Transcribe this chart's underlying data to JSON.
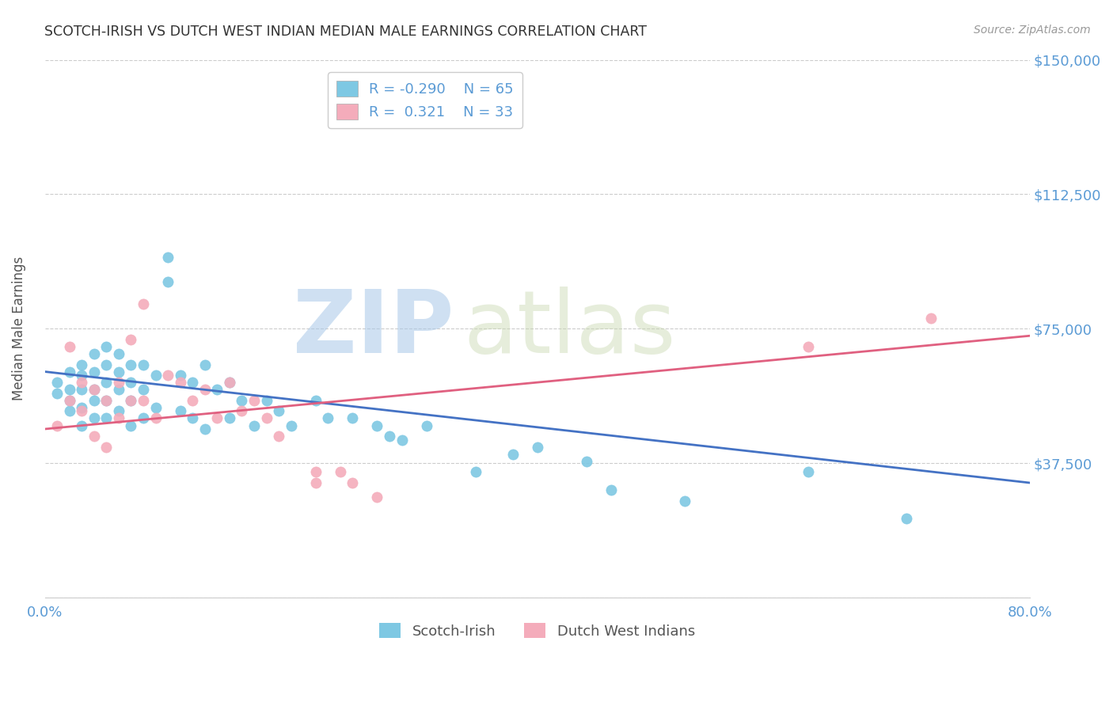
{
  "title": "SCOTCH-IRISH VS DUTCH WEST INDIAN MEDIAN MALE EARNINGS CORRELATION CHART",
  "source_text": "Source: ZipAtlas.com",
  "ylabel": "Median Male Earnings",
  "watermark_zip": "ZIP",
  "watermark_atlas": "atlas",
  "xmin": 0.0,
  "xmax": 0.8,
  "ymin": 0,
  "ymax": 150000,
  "yticks": [
    0,
    37500,
    75000,
    112500,
    150000
  ],
  "ytick_labels": [
    "",
    "$37,500",
    "$75,000",
    "$112,500",
    "$150,000"
  ],
  "xticks": [
    0.0,
    0.2,
    0.4,
    0.6,
    0.8
  ],
  "xtick_labels": [
    "0.0%",
    "",
    "",
    "",
    "80.0%"
  ],
  "blue_color": "#7EC8E3",
  "pink_color": "#F4ACBB",
  "blue_line_color": "#4472C4",
  "pink_line_color": "#E06080",
  "legend_label_blue": "Scotch-Irish",
  "legend_label_pink": "Dutch West Indians",
  "blue_R": -0.29,
  "blue_N": 65,
  "pink_R": 0.321,
  "pink_N": 33,
  "blue_scatter_x": [
    0.01,
    0.01,
    0.02,
    0.02,
    0.02,
    0.02,
    0.03,
    0.03,
    0.03,
    0.03,
    0.03,
    0.04,
    0.04,
    0.04,
    0.04,
    0.04,
    0.05,
    0.05,
    0.05,
    0.05,
    0.05,
    0.06,
    0.06,
    0.06,
    0.06,
    0.07,
    0.07,
    0.07,
    0.07,
    0.08,
    0.08,
    0.08,
    0.09,
    0.09,
    0.1,
    0.1,
    0.11,
    0.11,
    0.12,
    0.12,
    0.13,
    0.13,
    0.14,
    0.15,
    0.15,
    0.16,
    0.17,
    0.18,
    0.19,
    0.2,
    0.22,
    0.23,
    0.25,
    0.27,
    0.28,
    0.29,
    0.31,
    0.35,
    0.38,
    0.4,
    0.44,
    0.46,
    0.52,
    0.62,
    0.7
  ],
  "blue_scatter_y": [
    60000,
    57000,
    63000,
    58000,
    55000,
    52000,
    65000,
    62000,
    58000,
    53000,
    48000,
    68000,
    63000,
    58000,
    55000,
    50000,
    70000,
    65000,
    60000,
    55000,
    50000,
    68000,
    63000,
    58000,
    52000,
    65000,
    60000,
    55000,
    48000,
    65000,
    58000,
    50000,
    62000,
    53000,
    95000,
    88000,
    62000,
    52000,
    60000,
    50000,
    65000,
    47000,
    58000,
    60000,
    50000,
    55000,
    48000,
    55000,
    52000,
    48000,
    55000,
    50000,
    50000,
    48000,
    45000,
    44000,
    48000,
    35000,
    40000,
    42000,
    38000,
    30000,
    27000,
    35000,
    22000
  ],
  "pink_scatter_x": [
    0.01,
    0.02,
    0.02,
    0.03,
    0.03,
    0.04,
    0.04,
    0.05,
    0.05,
    0.06,
    0.06,
    0.07,
    0.07,
    0.08,
    0.08,
    0.09,
    0.1,
    0.11,
    0.12,
    0.13,
    0.14,
    0.15,
    0.16,
    0.17,
    0.18,
    0.19,
    0.22,
    0.22,
    0.24,
    0.25,
    0.27,
    0.62,
    0.72
  ],
  "pink_scatter_y": [
    48000,
    70000,
    55000,
    60000,
    52000,
    58000,
    45000,
    55000,
    42000,
    60000,
    50000,
    72000,
    55000,
    82000,
    55000,
    50000,
    62000,
    60000,
    55000,
    58000,
    50000,
    60000,
    52000,
    55000,
    50000,
    45000,
    35000,
    32000,
    35000,
    32000,
    28000,
    70000,
    78000
  ],
  "blue_trend_x": [
    0.0,
    0.8
  ],
  "blue_trend_y": [
    63000,
    32000
  ],
  "pink_trend_x": [
    0.0,
    0.8
  ],
  "pink_trend_y": [
    47000,
    73000
  ],
  "background_color": "#FFFFFF",
  "grid_color": "#CCCCCC",
  "title_color": "#333333",
  "axis_label_color": "#555555",
  "tick_label_color": "#5B9BD5",
  "source_color": "#999999"
}
